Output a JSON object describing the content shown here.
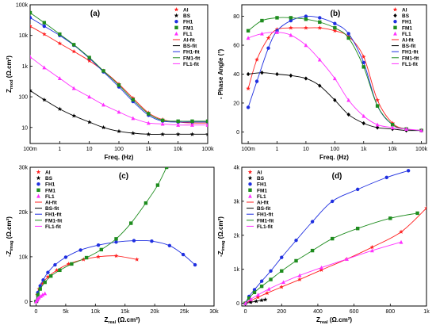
{
  "colors": {
    "Al": "#ff2020",
    "BS": "#000000",
    "FH1": "#1f2fe0",
    "FM1": "#1e8c1e",
    "FL1": "#ff30ff"
  },
  "legend_fit_suffix": "-fit",
  "chart_data": [
    {
      "id": "a",
      "panel_label": "(a)",
      "type": "line",
      "xlabel": "Freq. (Hz)",
      "ylabel_main": "Z",
      "ylabel_sub": "mod",
      "ylabel_unit": " (Ω.cm²)",
      "xscale": "log",
      "yscale": "log",
      "xlim": [
        0.1,
        100000
      ],
      "ylim": [
        3,
        100000
      ],
      "xticks": [
        {
          "v": 0.1,
          "t": "100m"
        },
        {
          "v": 1,
          "t": "1"
        },
        {
          "v": 10,
          "t": "10"
        },
        {
          "v": 100,
          "t": "100"
        },
        {
          "v": 1000,
          "t": "1k"
        },
        {
          "v": 10000,
          "t": "10k"
        },
        {
          "v": 100000,
          "t": "100k"
        }
      ],
      "yticks": [
        {
          "v": 10,
          "t": "10"
        },
        {
          "v": 100,
          "t": "100"
        },
        {
          "v": 1000,
          "t": "1k"
        },
        {
          "v": 10000,
          "t": "10k"
        },
        {
          "v": 100000,
          "t": "100k"
        }
      ],
      "legend": [
        "Al",
        "BS",
        "FH1",
        "FM1",
        "FL1",
        "Al-fit",
        "BS-fit",
        "FH1-fit",
        "FM1-fit",
        "FL1-fit"
      ],
      "legend_position": "top-right",
      "series": [
        {
          "name": "Al",
          "marker": "star",
          "x": [
            0.1,
            0.3,
            1,
            3,
            10,
            30,
            100,
            300,
            1000,
            3000,
            10000,
            30000,
            100000
          ],
          "y": [
            20000,
            11000,
            5500,
            3000,
            1500,
            700,
            260,
            90,
            30,
            18,
            15,
            14,
            14
          ]
        },
        {
          "name": "BS",
          "marker": "star",
          "x": [
            0.1,
            0.3,
            1,
            3,
            10,
            30,
            100,
            300,
            1000,
            3000,
            10000,
            30000,
            100000
          ],
          "y": [
            160,
            80,
            40,
            24,
            15,
            10,
            7.5,
            6.5,
            6,
            6,
            6,
            6,
            6
          ]
        },
        {
          "name": "FH1",
          "marker": "circle",
          "x": [
            0.1,
            0.3,
            1,
            3,
            10,
            30,
            100,
            300,
            1000,
            3000,
            10000,
            30000,
            100000
          ],
          "y": [
            38000,
            20000,
            10000,
            4800,
            1800,
            650,
            210,
            70,
            25,
            16,
            15,
            15,
            15
          ]
        },
        {
          "name": "FM1",
          "marker": "square",
          "x": [
            0.1,
            0.3,
            1,
            3,
            10,
            30,
            100,
            300,
            1000,
            3000,
            10000,
            30000,
            100000
          ],
          "y": [
            55000,
            26000,
            11000,
            5000,
            1900,
            700,
            240,
            80,
            28,
            17,
            16,
            16,
            16
          ]
        },
        {
          "name": "FL1",
          "marker": "triangle",
          "x": [
            0.1,
            0.3,
            1,
            3,
            10,
            30,
            100,
            300,
            1000,
            3000,
            10000,
            30000,
            100000
          ],
          "y": [
            2000,
            900,
            400,
            190,
            100,
            55,
            32,
            20,
            14,
            13,
            12,
            12,
            12
          ]
        }
      ]
    },
    {
      "id": "b",
      "panel_label": "(b)",
      "type": "line",
      "xlabel": "Freq. (Hz)",
      "ylabel_main": "- Phase Angle (°)",
      "ylabel_sub": "",
      "ylabel_unit": "",
      "xscale": "log",
      "yscale": "linear",
      "xlim": [
        0.06,
        150000
      ],
      "ylim": [
        -8,
        88
      ],
      "xticks": [
        {
          "v": 0.1,
          "t": "100m"
        },
        {
          "v": 1,
          "t": "1"
        },
        {
          "v": 10,
          "t": "10"
        },
        {
          "v": 100,
          "t": "100"
        },
        {
          "v": 1000,
          "t": "1k"
        },
        {
          "v": 10000,
          "t": "10k"
        },
        {
          "v": 100000,
          "t": "100k"
        }
      ],
      "yticks": [
        {
          "v": 0,
          "t": "0"
        },
        {
          "v": 20,
          "t": "20"
        },
        {
          "v": 40,
          "t": "40"
        },
        {
          "v": 60,
          "t": "60"
        },
        {
          "v": 80,
          "t": "80"
        }
      ],
      "legend": [
        "Al",
        "BS",
        "FH1",
        "FM1",
        "FL1",
        "Al-fit",
        "BS-fit",
        "FH1-fit",
        "FM1-fit",
        "FL1-fit"
      ],
      "legend_position": "top-right",
      "series": [
        {
          "name": "Al",
          "marker": "star",
          "x": [
            0.1,
            0.2,
            0.5,
            1,
            3,
            10,
            30,
            100,
            300,
            1000,
            3000,
            10000,
            30000,
            100000
          ],
          "y": [
            30,
            50,
            65,
            71,
            72,
            72,
            72,
            70,
            66,
            52,
            22,
            6,
            2,
            1
          ]
        },
        {
          "name": "BS",
          "marker": "diamond",
          "x": [
            0.1,
            0.3,
            1,
            3,
            10,
            30,
            100,
            300,
            1000,
            3000,
            10000,
            30000,
            100000
          ],
          "y": [
            40,
            41,
            40,
            39,
            37,
            32,
            22,
            12,
            6,
            3,
            2,
            1,
            1
          ]
        },
        {
          "name": "FH1",
          "marker": "circle",
          "x": [
            0.1,
            0.2,
            0.5,
            1,
            3,
            10,
            30,
            100,
            300,
            1000,
            3000,
            10000,
            30000,
            100000
          ],
          "y": [
            17,
            35,
            58,
            70,
            77,
            80,
            79,
            75,
            68,
            48,
            18,
            5,
            2,
            1
          ]
        },
        {
          "name": "FM1",
          "marker": "square",
          "x": [
            0.1,
            0.3,
            1,
            3,
            10,
            30,
            100,
            300,
            1000,
            3000,
            10000,
            30000,
            100000
          ],
          "y": [
            70,
            77,
            79,
            79,
            78,
            76,
            72,
            65,
            45,
            18,
            5,
            2,
            1
          ]
        },
        {
          "name": "FL1",
          "marker": "triangle",
          "x": [
            0.1,
            0.3,
            1,
            3,
            10,
            30,
            100,
            300,
            1000,
            3000,
            10000,
            30000,
            100000
          ],
          "y": [
            65,
            68,
            69,
            67,
            60,
            50,
            37,
            22,
            11,
            5,
            3,
            2,
            1
          ]
        }
      ]
    },
    {
      "id": "c",
      "panel_label": "(c)",
      "type": "scatter",
      "xlabel_main": "Z",
      "xlabel_sub": "real",
      "xlabel_unit": " (Ω.cm²)",
      "ylabel_main": "-Z",
      "ylabel_sub": "imag",
      "ylabel_unit": " (Ω.cm²)",
      "xscale": "linear",
      "yscale": "linear",
      "xlim": [
        -1000,
        30000
      ],
      "ylim": [
        -1000,
        30000
      ],
      "xticks": [
        {
          "v": 0,
          "t": "0"
        },
        {
          "v": 5000,
          "t": "5k"
        },
        {
          "v": 10000,
          "t": "10k"
        },
        {
          "v": 15000,
          "t": "15k"
        },
        {
          "v": 20000,
          "t": "20k"
        },
        {
          "v": 25000,
          "t": "25k"
        },
        {
          "v": 30000,
          "t": "30k"
        }
      ],
      "yticks": [
        {
          "v": 0,
          "t": "0"
        },
        {
          "v": 10000,
          "t": "10k"
        },
        {
          "v": 20000,
          "t": "20k"
        },
        {
          "v": 30000,
          "t": "30k"
        }
      ],
      "legend": [
        "Al",
        "BS",
        "FH1",
        "FM1",
        "FL1",
        "Al-fit",
        "BS-fit",
        "FH1-fit",
        "FM1-fit",
        "FL1-fit"
      ],
      "legend_position": "top-left",
      "series": [
        {
          "name": "Al",
          "marker": "star",
          "x": [
            0,
            200,
            500,
            1000,
            2000,
            3500,
            5500,
            8000,
            10500,
            13500,
            17000
          ],
          "y": [
            0,
            1500,
            2800,
            4000,
            5500,
            7000,
            8400,
            9400,
            10000,
            10200,
            9400
          ]
        },
        {
          "name": "BS",
          "marker": "star",
          "x": [
            0,
            50,
            100,
            150
          ],
          "y": [
            0,
            40,
            80,
            100
          ]
        },
        {
          "name": "FH1",
          "marker": "circle",
          "x": [
            0,
            300,
            700,
            1200,
            2000,
            3200,
            5000,
            7500,
            10500,
            13500,
            16500,
            19500,
            22500,
            24800,
            26800
          ],
          "y": [
            0,
            2000,
            3500,
            4800,
            6500,
            8200,
            9900,
            11500,
            12600,
            13300,
            13600,
            13500,
            12500,
            10500,
            8200
          ]
        },
        {
          "name": "FM1",
          "marker": "square",
          "x": [
            0,
            300,
            700,
            1500,
            2500,
            4000,
            6000,
            8500,
            11000,
            13500,
            16000,
            18500,
            20500,
            22000
          ],
          "y": [
            0,
            1500,
            2800,
            4300,
            5700,
            7000,
            8400,
            9800,
            11600,
            14000,
            17500,
            22000,
            26000,
            30000
          ]
        },
        {
          "name": "FL1",
          "marker": "triangle",
          "x": [
            0,
            150,
            300,
            500,
            800,
            1100,
            1500
          ],
          "y": [
            0,
            300,
            600,
            900,
            1200,
            1500,
            1800
          ]
        }
      ]
    },
    {
      "id": "d",
      "panel_label": "(d)",
      "type": "scatter",
      "xlabel_main": "Z",
      "xlabel_sub": "real",
      "xlabel_unit": " (Ω.cm²)",
      "ylabel_main": "-Z",
      "ylabel_sub": "imag",
      "ylabel_unit": " (Ω.cm²)",
      "xscale": "linear",
      "yscale": "linear",
      "xlim": [
        -20,
        1000
      ],
      "ylim": [
        -80,
        4000
      ],
      "xticks": [
        {
          "v": 0,
          "t": "0"
        },
        {
          "v": 200,
          "t": "200"
        },
        {
          "v": 400,
          "t": "400"
        },
        {
          "v": 600,
          "t": "600"
        },
        {
          "v": 800,
          "t": "800"
        },
        {
          "v": 1000,
          "t": "1k"
        }
      ],
      "yticks": [
        {
          "v": 0,
          "t": "0"
        },
        {
          "v": 1000,
          "t": "1k"
        },
        {
          "v": 2000,
          "t": "2k"
        },
        {
          "v": 3000,
          "t": "3k"
        },
        {
          "v": 4000,
          "t": "4k"
        }
      ],
      "legend": [
        "Al",
        "BS",
        "FH1",
        "FM1",
        "FL1",
        "Al-fit",
        "BS-fit",
        "FH1-fit",
        "FM1-fit",
        "FL1-fit"
      ],
      "legend_position": "top-left",
      "series": [
        {
          "name": "Al",
          "marker": "star",
          "x": [
            0,
            30,
            70,
            120,
            200,
            300,
            420,
            560,
            700,
            860,
            1000
          ],
          "y": [
            0,
            80,
            180,
            300,
            480,
            700,
            980,
            1300,
            1650,
            2100,
            2800
          ]
        },
        {
          "name": "BS",
          "marker": "star",
          "x": [
            0,
            30,
            60,
            90,
            110
          ],
          "y": [
            0,
            30,
            60,
            90,
            110
          ]
        },
        {
          "name": "FH1",
          "marker": "circle",
          "x": [
            0,
            20,
            50,
            90,
            140,
            200,
            280,
            370,
            480,
            620,
            780,
            900
          ],
          "y": [
            0,
            200,
            400,
            650,
            950,
            1350,
            1850,
            2400,
            3000,
            3350,
            3700,
            3900
          ]
        },
        {
          "name": "FM1",
          "marker": "square",
          "x": [
            0,
            20,
            50,
            90,
            140,
            200,
            280,
            370,
            480,
            620,
            800,
            950
          ],
          "y": [
            0,
            150,
            320,
            500,
            700,
            950,
            1250,
            1550,
            1900,
            2200,
            2500,
            2650
          ]
        },
        {
          "name": "FL1",
          "marker": "triangle",
          "x": [
            0,
            30,
            70,
            130,
            210,
            300,
            420,
            560,
            700,
            860
          ],
          "y": [
            0,
            120,
            250,
            420,
            620,
            820,
            1050,
            1300,
            1550,
            1800
          ]
        }
      ]
    }
  ]
}
